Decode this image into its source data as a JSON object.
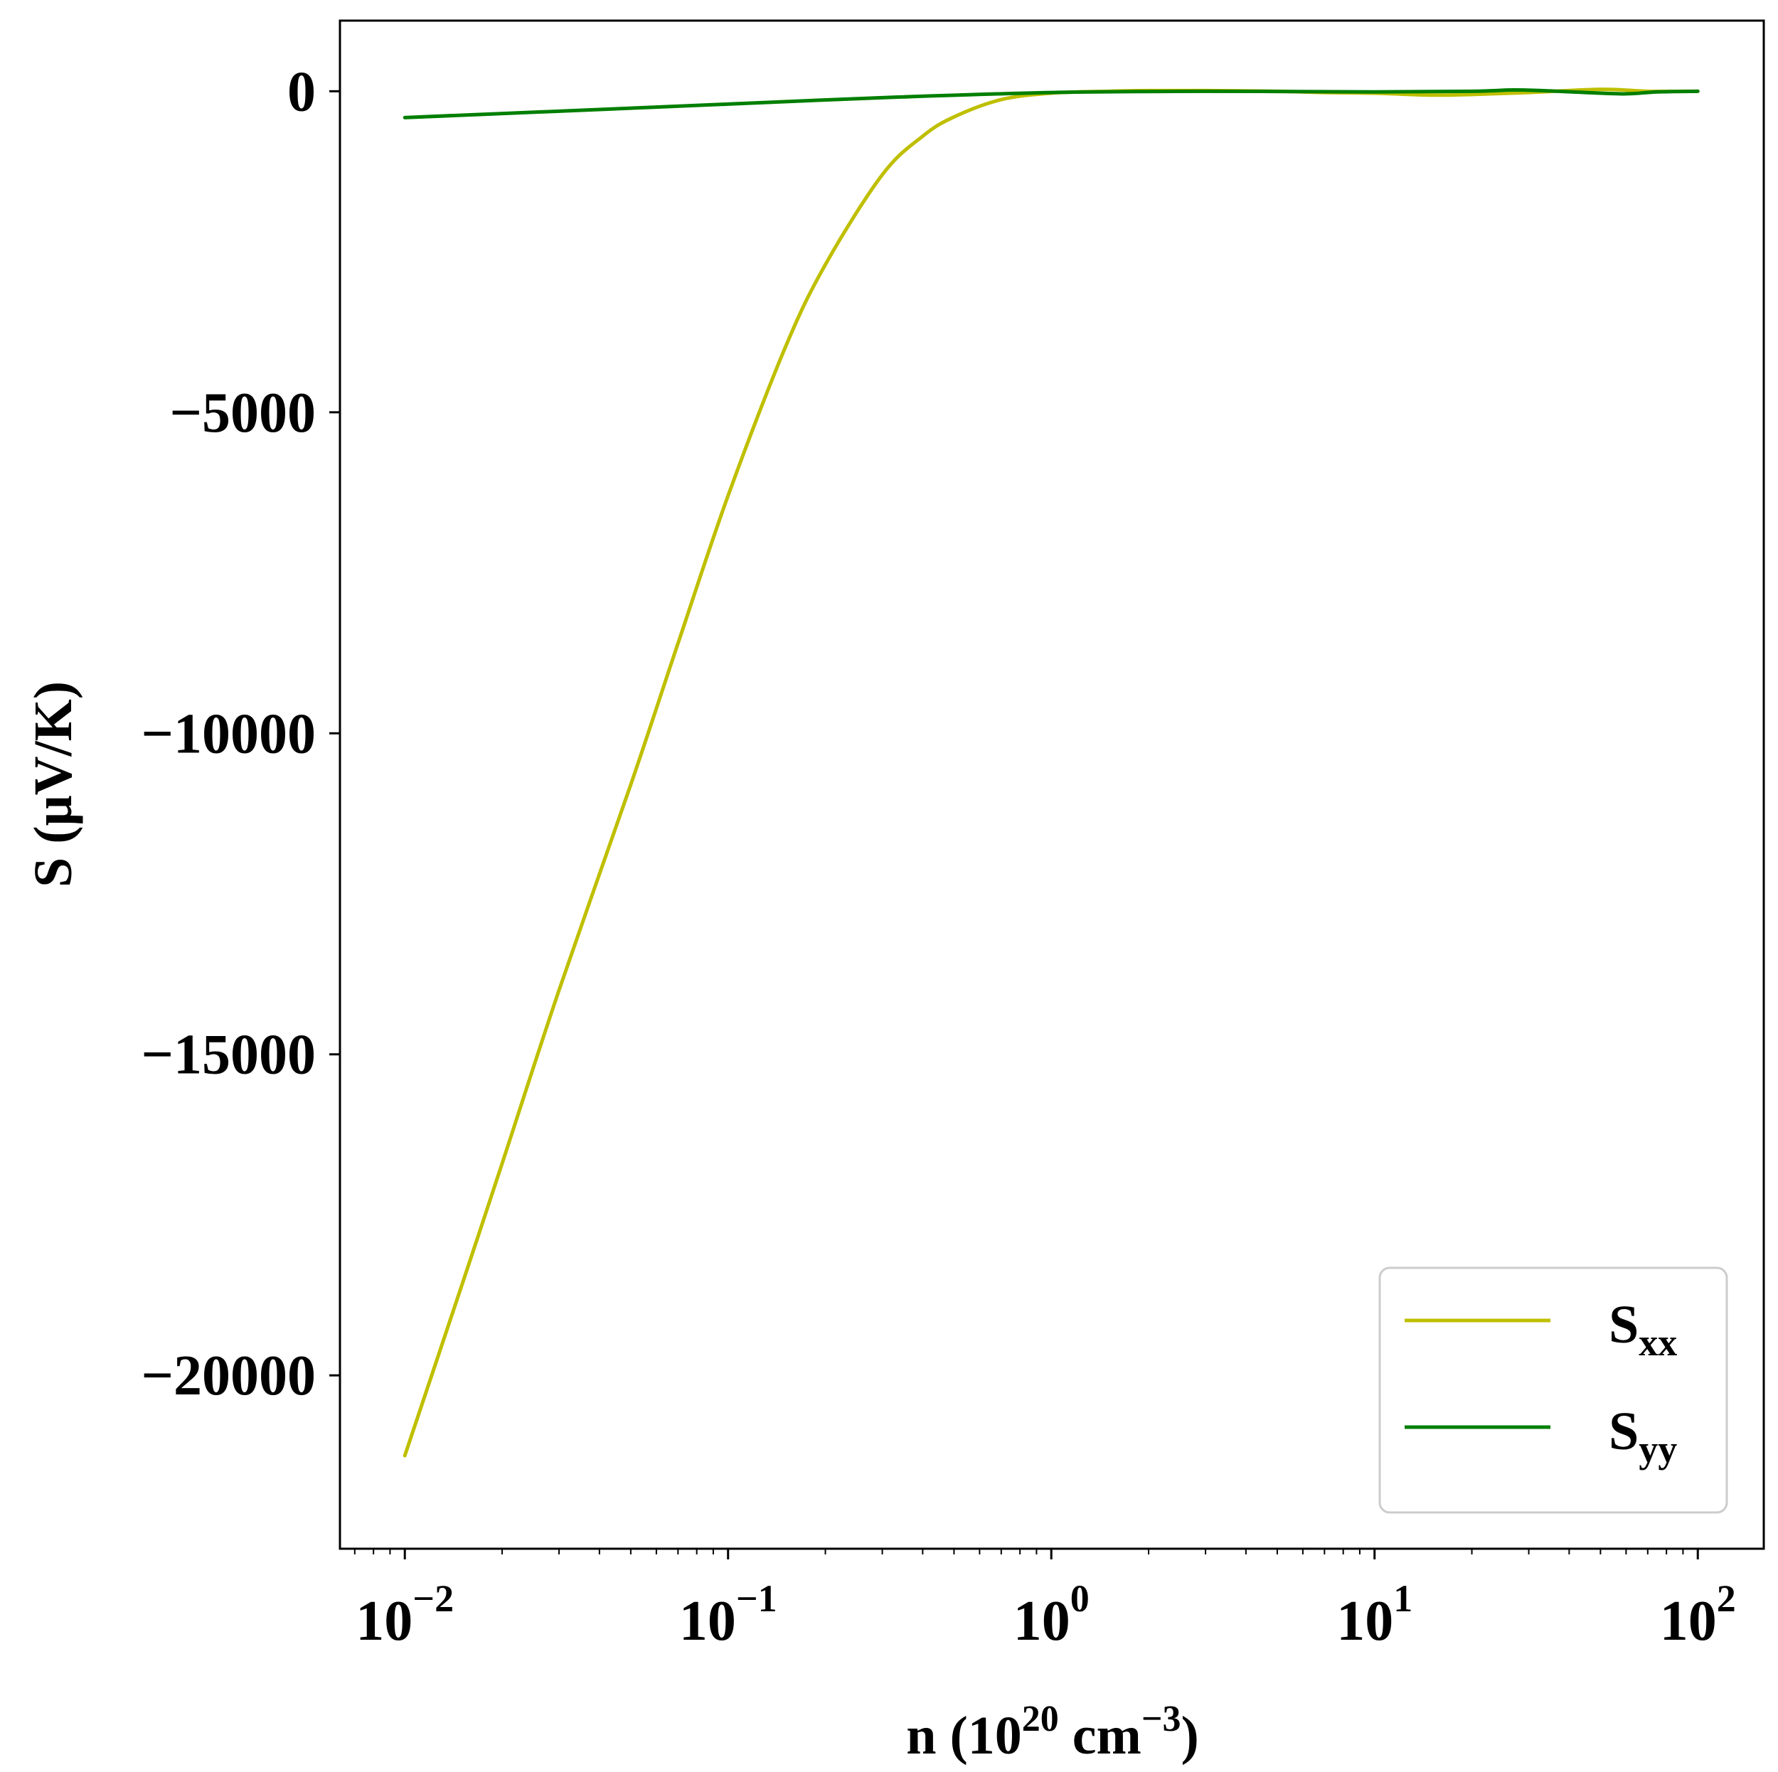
{
  "chart_data": {
    "type": "line",
    "xscale": "log",
    "xlim": [
      0.0063,
      160
    ],
    "ylim": [
      -22700,
      1100
    ],
    "grid": false,
    "legend_position": "bottom-right",
    "xlabel": {
      "base": "n (10",
      "sup1": "20",
      "mid": " cm",
      "sup2": "−3",
      "end": ")"
    },
    "ylabel": "S (μV/K)",
    "x_ticks": [
      {
        "value": 0.01,
        "base": "10",
        "exp": "−2"
      },
      {
        "value": 0.1,
        "base": "10",
        "exp": "−1"
      },
      {
        "value": 1,
        "base": "10",
        "exp": "0"
      },
      {
        "value": 10,
        "base": "10",
        "exp": "1"
      },
      {
        "value": 100,
        "base": "10",
        "exp": "2"
      }
    ],
    "y_ticks": [
      {
        "value": 0,
        "label": "0"
      },
      {
        "value": -5000,
        "label": "−5000"
      },
      {
        "value": -10000,
        "label": "−10000"
      },
      {
        "value": -15000,
        "label": "−15000"
      },
      {
        "value": -20000,
        "label": "−20000"
      }
    ],
    "series": [
      {
        "name": "S",
        "sub": "xx",
        "color": "#bfbf00",
        "x": [
          0.01,
          0.015,
          0.02,
          0.03,
          0.05,
          0.07,
          0.1,
          0.15,
          0.2,
          0.3,
          0.4,
          0.5,
          0.7,
          1.0,
          1.5,
          2,
          3,
          5,
          7,
          10,
          15,
          20,
          30,
          50,
          70,
          100
        ],
        "y": [
          -21250,
          -18600,
          -16700,
          -14000,
          -10800,
          -8600,
          -6300,
          -4000,
          -2700,
          -1300,
          -700,
          -400,
          -130,
          -30,
          0,
          10,
          10,
          0,
          -20,
          -30,
          -60,
          -50,
          -20,
          30,
          0,
          0
        ]
      },
      {
        "name": "S",
        "sub": "yy",
        "color": "#007f00",
        "x": [
          0.01,
          0.03,
          0.1,
          0.3,
          1.0,
          3,
          10,
          20,
          27,
          35,
          45,
          60,
          75,
          100
        ],
        "y": [
          -410,
          -310,
          -200,
          -100,
          -20,
          0,
          -10,
          0,
          20,
          5,
          -20,
          -40,
          -10,
          0
        ]
      }
    ]
  }
}
